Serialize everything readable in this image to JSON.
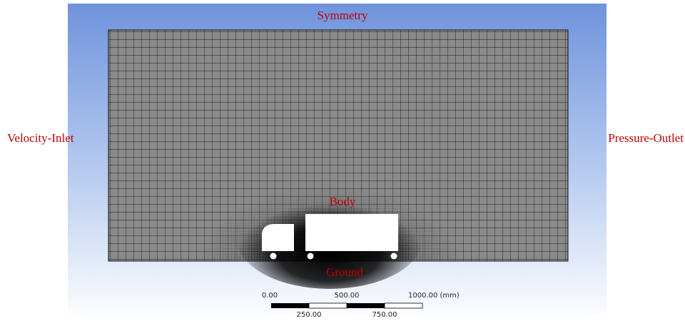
{
  "labels": {
    "top": "Symmetry",
    "left": "Velocity-Inlet",
    "right": "Pressure-Outlet",
    "body": "Body",
    "bottom": "Ground"
  },
  "scale_bar": {
    "top_labels": [
      "0.00",
      "500.00",
      "1000.00 (mm)"
    ],
    "bottom_labels": [
      "250.00",
      "750.00"
    ]
  }
}
